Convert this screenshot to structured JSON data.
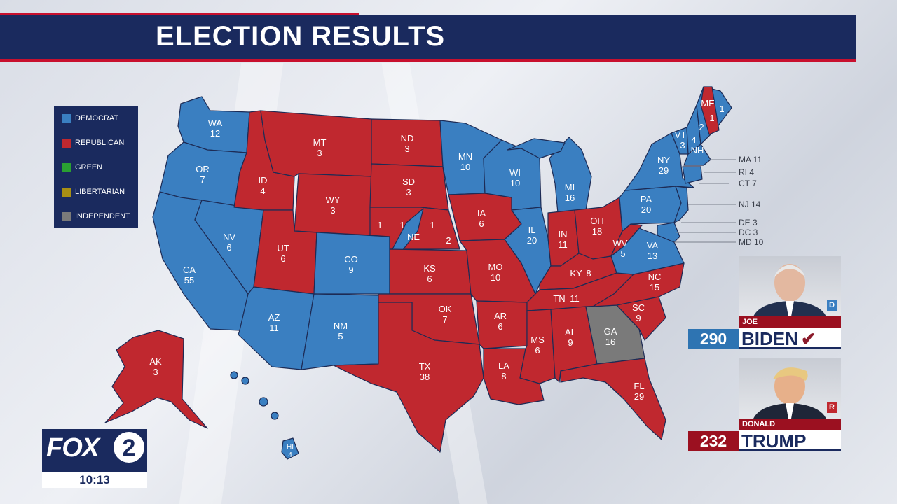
{
  "header": {
    "title": "ELECTION RESULTS"
  },
  "colors": {
    "democrat": "#3a7fc1",
    "republican": "#c0282f",
    "green": "#2aa032",
    "libertarian": "#a88f14",
    "independent": "#7a7a7a",
    "navy": "#1a2a5e"
  },
  "legend": [
    {
      "label": "DEMOCRAT",
      "color": "#3a7fc1"
    },
    {
      "label": "REPUBLICAN",
      "color": "#c0282f"
    },
    {
      "label": "GREEN",
      "color": "#2aa032"
    },
    {
      "label": "LIBERTARIAN",
      "color": "#a88f14"
    },
    {
      "label": "INDEPENDENT",
      "color": "#7a7a7a"
    }
  ],
  "states": {
    "WA": {
      "abbr": "WA",
      "ev": "12",
      "party": "D"
    },
    "OR": {
      "abbr": "OR",
      "ev": "7",
      "party": "D"
    },
    "CA": {
      "abbr": "CA",
      "ev": "55",
      "party": "D"
    },
    "NV": {
      "abbr": "NV",
      "ev": "6",
      "party": "D"
    },
    "ID": {
      "abbr": "ID",
      "ev": "4",
      "party": "R"
    },
    "MT": {
      "abbr": "MT",
      "ev": "3",
      "party": "R"
    },
    "WY": {
      "abbr": "WY",
      "ev": "3",
      "party": "R"
    },
    "UT": {
      "abbr": "UT",
      "ev": "6",
      "party": "R"
    },
    "AZ": {
      "abbr": "AZ",
      "ev": "11",
      "party": "D"
    },
    "CO": {
      "abbr": "CO",
      "ev": "9",
      "party": "D"
    },
    "NM": {
      "abbr": "NM",
      "ev": "5",
      "party": "D"
    },
    "ND": {
      "abbr": "ND",
      "ev": "3",
      "party": "R"
    },
    "SD": {
      "abbr": "SD",
      "ev": "3",
      "party": "R"
    },
    "NE": {
      "abbr": "NE",
      "ev": "",
      "party": "R"
    },
    "KS": {
      "abbr": "KS",
      "ev": "6",
      "party": "R"
    },
    "OK": {
      "abbr": "OK",
      "ev": "7",
      "party": "R"
    },
    "TX": {
      "abbr": "TX",
      "ev": "38",
      "party": "R"
    },
    "MN": {
      "abbr": "MN",
      "ev": "10",
      "party": "D"
    },
    "IA": {
      "abbr": "IA",
      "ev": "6",
      "party": "R"
    },
    "MO": {
      "abbr": "MO",
      "ev": "10",
      "party": "R"
    },
    "AR": {
      "abbr": "AR",
      "ev": "6",
      "party": "R"
    },
    "LA": {
      "abbr": "LA",
      "ev": "8",
      "party": "R"
    },
    "WI": {
      "abbr": "WI",
      "ev": "10",
      "party": "D"
    },
    "IL": {
      "abbr": "IL",
      "ev": "20",
      "party": "D"
    },
    "MI": {
      "abbr": "MI",
      "ev": "16",
      "party": "D"
    },
    "IN": {
      "abbr": "IN",
      "ev": "11",
      "party": "R"
    },
    "OH": {
      "abbr": "OH",
      "ev": "18",
      "party": "R"
    },
    "KY": {
      "abbr": "KY",
      "ev": "8",
      "party": "R"
    },
    "TN": {
      "abbr": "TN",
      "ev": "11",
      "party": "R"
    },
    "MS": {
      "abbr": "MS",
      "ev": "6",
      "party": "R"
    },
    "AL": {
      "abbr": "AL",
      "ev": "9",
      "party": "R"
    },
    "GA": {
      "abbr": "GA",
      "ev": "16",
      "party": "I"
    },
    "FL": {
      "abbr": "FL",
      "ev": "29",
      "party": "R"
    },
    "SC": {
      "abbr": "SC",
      "ev": "9",
      "party": "R"
    },
    "NC": {
      "abbr": "NC",
      "ev": "15",
      "party": "R"
    },
    "VA": {
      "abbr": "VA",
      "ev": "13",
      "party": "D"
    },
    "WV": {
      "abbr": "WV",
      "ev": "5",
      "party": "R"
    },
    "PA": {
      "abbr": "PA",
      "ev": "20",
      "party": "D"
    },
    "NY": {
      "abbr": "NY",
      "ev": "29",
      "party": "D"
    },
    "VT": {
      "abbr": "VT",
      "ev": "3",
      "party": "D"
    },
    "NH": {
      "abbr": "NH",
      "ev": "4",
      "party": "D"
    },
    "ME": {
      "abbr": "ME",
      "ev": "",
      "party": "D"
    },
    "AK": {
      "abbr": "AK",
      "ev": "3",
      "party": "R"
    },
    "HI": {
      "abbr": "HI",
      "ev": "4",
      "party": "D"
    }
  },
  "split_votes": {
    "ne_1": "1",
    "ne_2": "1",
    "ne_3": "1",
    "ne_4": "2",
    "me_1": "1",
    "me_2": "1",
    "me_3": "2"
  },
  "small_states": [
    {
      "label": "MA 11"
    },
    {
      "label": "RI 4"
    },
    {
      "label": "CT 7"
    },
    {
      "label": "NJ 14"
    },
    {
      "label": "DE 3"
    },
    {
      "label": "DC 3"
    },
    {
      "label": "MD 10"
    }
  ],
  "candidates": [
    {
      "first": "JOE",
      "last": "BIDEN",
      "party": "D",
      "votes": "290",
      "winner": "✔",
      "color": "#3a7fc1"
    },
    {
      "first": "DONALD",
      "last": "TRUMP",
      "party": "R",
      "votes": "232",
      "winner": "",
      "color": "#c0282f"
    }
  ],
  "station": {
    "logo": "FOX",
    "channel": "2",
    "time": "10:13"
  }
}
